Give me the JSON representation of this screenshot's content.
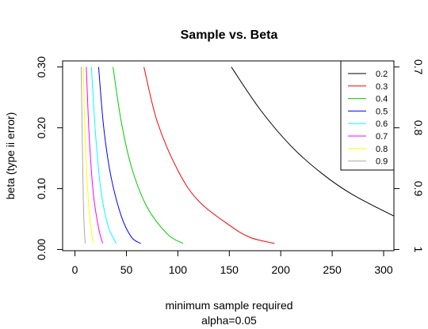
{
  "chart_data": {
    "type": "line",
    "title": "Sample vs. Beta",
    "xlabel": "minimum sample required",
    "xlabel2": "alpha=0.05",
    "ylabel": "beta (type ii error)",
    "xlim": [
      -12,
      310
    ],
    "ylim": [
      -0.002,
      0.31
    ],
    "xticks": [
      0,
      50,
      100,
      150,
      200,
      250,
      300
    ],
    "xtick_labels": [
      "0",
      "50",
      "100",
      "150",
      "200",
      "250",
      "300"
    ],
    "yticks": [
      0.0,
      0.1,
      0.2,
      0.3
    ],
    "ytick_labels": [
      "0.00",
      "0.10",
      "0.20",
      "0.30"
    ],
    "secondary_yticks": [
      0.3,
      0.2,
      0.1,
      0.0
    ],
    "secondary_ytick_labels": [
      "0.7",
      "0.8",
      "0.9",
      "1"
    ],
    "grid": false,
    "legend_placement": "top-right",
    "series": [
      {
        "name": "0.2",
        "color": "#000000",
        "x": [
          152,
          180,
          210,
          240,
          270,
          310
        ],
        "y": [
          0.3,
          0.23,
          0.17,
          0.125,
          0.09,
          0.055
        ]
      },
      {
        "name": "0.3",
        "color": "#ff0000",
        "x": [
          67,
          80,
          100,
          120,
          150,
          170,
          194
        ],
        "y": [
          0.3,
          0.21,
          0.13,
          0.08,
          0.04,
          0.02,
          0.01
        ]
      },
      {
        "name": "0.4",
        "color": "#00cc00",
        "x": [
          37,
          45,
          55,
          70,
          90,
          105
        ],
        "y": [
          0.3,
          0.21,
          0.135,
          0.07,
          0.025,
          0.01
        ]
      },
      {
        "name": "0.5",
        "color": "#0000ff",
        "x": [
          23,
          28,
          35,
          45,
          55,
          64
        ],
        "y": [
          0.3,
          0.2,
          0.12,
          0.055,
          0.02,
          0.01
        ]
      },
      {
        "name": "0.6",
        "color": "#00ffff",
        "x": [
          16,
          20,
          25,
          32,
          40
        ],
        "y": [
          0.3,
          0.19,
          0.1,
          0.04,
          0.01
        ]
      },
      {
        "name": "0.7",
        "color": "#ff00ff",
        "x": [
          11,
          14,
          18,
          23,
          27
        ],
        "y": [
          0.3,
          0.18,
          0.09,
          0.035,
          0.01
        ]
      },
      {
        "name": "0.8",
        "color": "#ffff00",
        "x": [
          8,
          10,
          13,
          16,
          18
        ],
        "y": [
          0.3,
          0.18,
          0.08,
          0.03,
          0.01
        ]
      },
      {
        "name": "0.9",
        "color": "#aaaaaa",
        "x": [
          6,
          7,
          8,
          9,
          10
        ],
        "y": [
          0.3,
          0.19,
          0.09,
          0.035,
          0.01
        ]
      }
    ]
  }
}
